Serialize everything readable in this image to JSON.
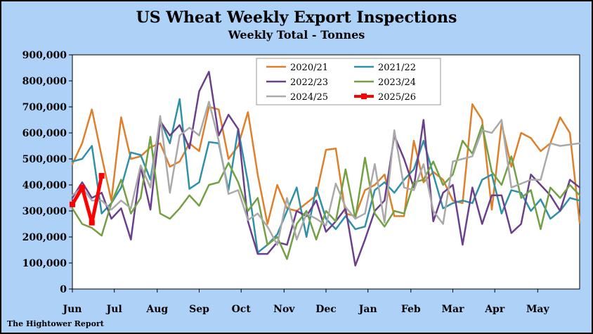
{
  "chart_data": {
    "type": "line",
    "title": "US Wheat Weekly Export Inspections",
    "subtitle": "Weekly Total - Tonnes",
    "xlabel": "",
    "ylabel": "",
    "source": "The Hightower Report",
    "ylim": [
      0,
      900000
    ],
    "y_ticks": [
      0,
      100000,
      200000,
      300000,
      400000,
      500000,
      600000,
      700000,
      800000,
      900000
    ],
    "y_tick_labels": [
      "0",
      "100,000",
      "200,000",
      "300,000",
      "400,000",
      "500,000",
      "600,000",
      "700,000",
      "800,000",
      "900,000"
    ],
    "x_weeks": 52,
    "x_tick_labels": [
      "Jun",
      "Jul",
      "Aug",
      "Sep",
      "Oct",
      "Nov",
      "Dec",
      "Jan",
      "Feb",
      "Mar",
      "Apr",
      "May"
    ],
    "x_tick_weeks": [
      0,
      4.3,
      8.7,
      13,
      17.3,
      21.7,
      26,
      30.3,
      34.7,
      39,
      43.3,
      47.7
    ],
    "grid": false,
    "legend_position": "top-center",
    "plot_background": "#ffffff",
    "series": [
      {
        "name": "2020/21",
        "color": "#e07f2a",
        "width": 2.5,
        "values": [
          480000,
          560000,
          690000,
          510000,
          340000,
          660000,
          500000,
          510000,
          545000,
          560000,
          470000,
          490000,
          560000,
          530000,
          700000,
          690000,
          500000,
          550000,
          680000,
          440000,
          250000,
          400000,
          310000,
          300000,
          330000,
          360000,
          535000,
          540000,
          290000,
          280000,
          380000,
          400000,
          440000,
          280000,
          280000,
          570000,
          410000,
          450000,
          420000,
          340000,
          330000,
          710000,
          650000,
          305000,
          635000,
          470000,
          600000,
          580000,
          530000,
          560000,
          660000,
          600000,
          255000
        ]
      },
      {
        "name": "2021/22",
        "color": "#2f91a8",
        "width": 2.5,
        "values": [
          490000,
          500000,
          550000,
          290000,
          330000,
          390000,
          525000,
          515000,
          420000,
          650000,
          560000,
          730000,
          385000,
          410000,
          565000,
          560000,
          380000,
          615000,
          410000,
          140000,
          170000,
          210000,
          300000,
          390000,
          200000,
          390000,
          270000,
          230000,
          280000,
          230000,
          240000,
          380000,
          410000,
          370000,
          420000,
          460000,
          570000,
          440000,
          310000,
          330000,
          340000,
          330000,
          420000,
          440000,
          290000,
          380000,
          370000,
          300000,
          345000,
          270000,
          300000,
          350000,
          340000
        ]
      },
      {
        "name": "2022/23",
        "color": "#6b3f8c",
        "width": 2.5,
        "values": [
          350000,
          410000,
          350000,
          370000,
          270000,
          310000,
          190000,
          470000,
          305000,
          645000,
          590000,
          630000,
          540000,
          760000,
          835000,
          590000,
          670000,
          615000,
          260000,
          135000,
          135000,
          180000,
          170000,
          300000,
          280000,
          340000,
          220000,
          260000,
          310000,
          90000,
          190000,
          300000,
          340000,
          590000,
          500000,
          390000,
          650000,
          260000,
          370000,
          400000,
          170000,
          390000,
          250000,
          360000,
          360000,
          215000,
          250000,
          440000,
          400000,
          360000,
          300000,
          420000,
          390000
        ]
      },
      {
        "name": "2023/24",
        "color": "#72a043",
        "width": 2.5,
        "values": [
          310000,
          250000,
          235000,
          205000,
          330000,
          420000,
          290000,
          350000,
          585000,
          290000,
          270000,
          310000,
          360000,
          320000,
          400000,
          410000,
          485000,
          410000,
          300000,
          350000,
          170000,
          200000,
          115000,
          250000,
          300000,
          190000,
          300000,
          260000,
          460000,
          270000,
          505000,
          290000,
          240000,
          300000,
          290000,
          410000,
          420000,
          490000,
          400000,
          440000,
          570000,
          520000,
          630000,
          450000,
          400000,
          510000,
          350000,
          380000,
          230000,
          390000,
          350000,
          400000,
          360000
        ]
      },
      {
        "name": "2024/25",
        "color": "#a9a9a9",
        "width": 2.5,
        "values": [
          360000,
          390000,
          340000,
          340000,
          305000,
          340000,
          310000,
          475000,
          390000,
          665000,
          370000,
          590000,
          620000,
          590000,
          720000,
          570000,
          365000,
          380000,
          265000,
          290000,
          240000,
          170000,
          350000,
          190000,
          290000,
          270000,
          245000,
          405000,
          315000,
          270000,
          290000,
          480000,
          255000,
          610000,
          390000,
          380000,
          480000,
          300000,
          250000,
          490000,
          500000,
          510000,
          610000,
          600000,
          650000,
          390000,
          405000,
          420000,
          420000,
          560000,
          550000,
          555000,
          560000
        ]
      },
      {
        "name": "2025/26",
        "color": "#ff0000",
        "width": 5,
        "values": [
          325000,
          390000,
          255000,
          435000
        ]
      }
    ]
  }
}
